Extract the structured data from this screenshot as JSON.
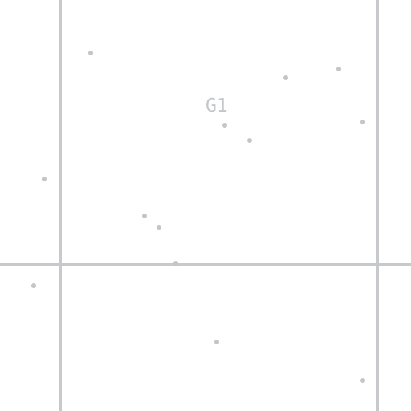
{
  "colors": {
    "background": "#ffffff",
    "grid_line": "#c8c9cc",
    "point": "#c3c5c9",
    "label": "#c4c6ca"
  },
  "canvas": {
    "region_label": "G1",
    "point_count": 14
  }
}
